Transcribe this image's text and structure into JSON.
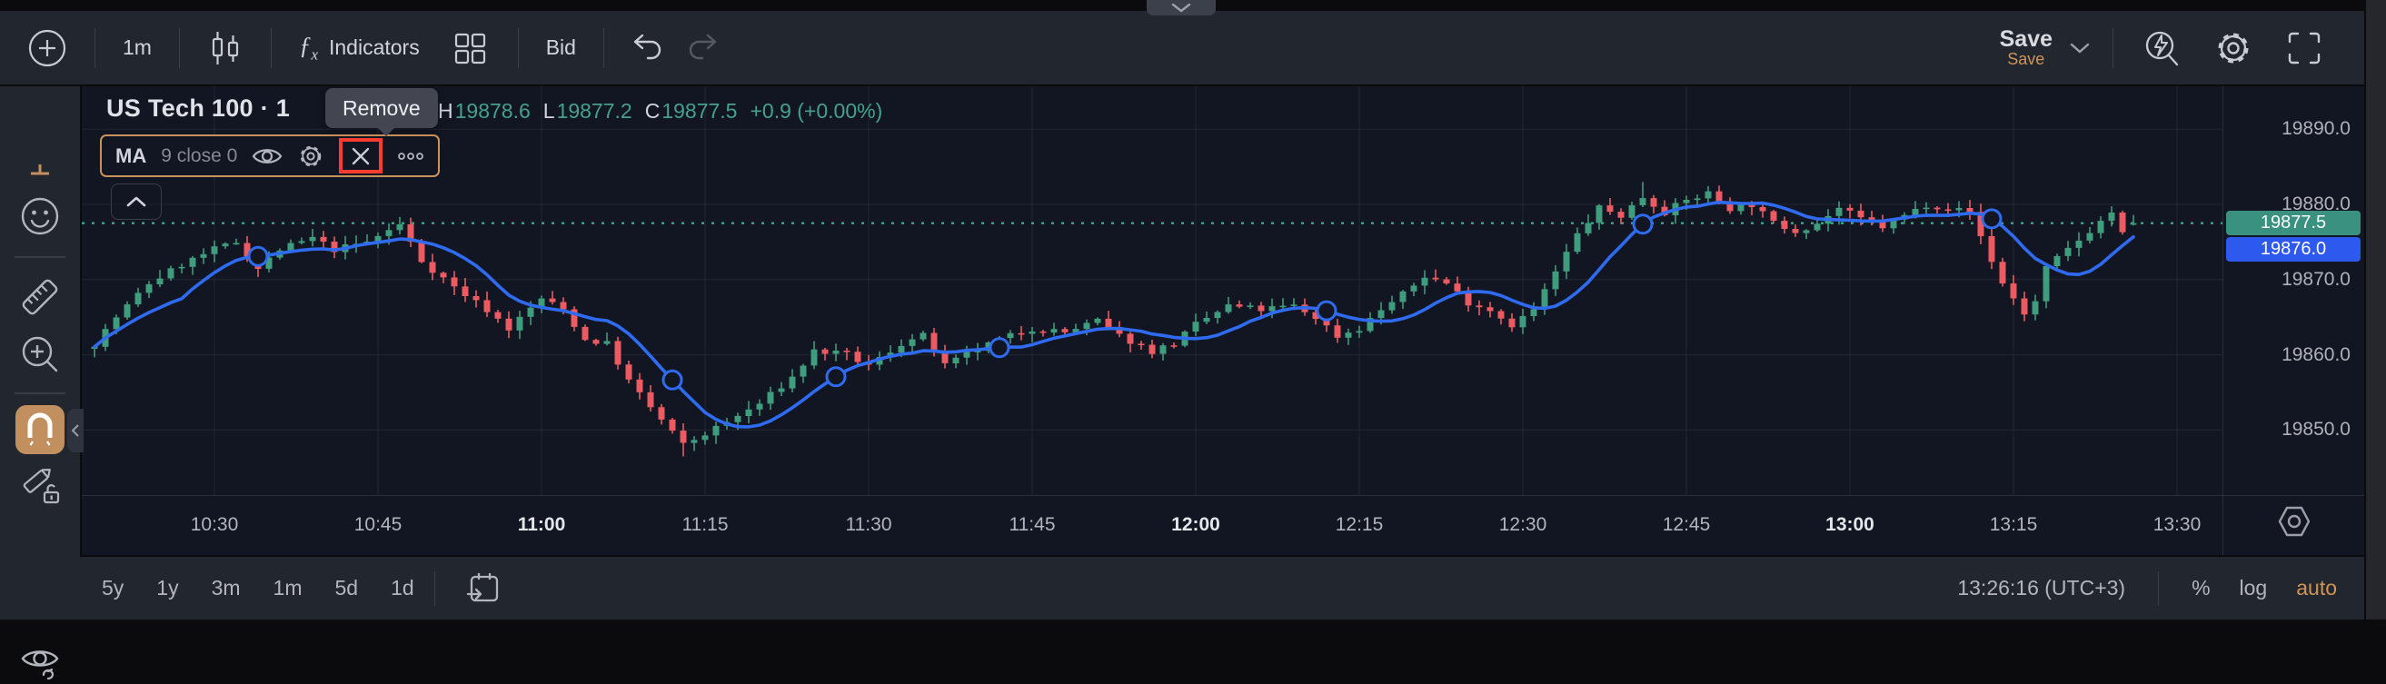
{
  "header": {
    "interval": "1m",
    "indicators_label": "Indicators",
    "fx_glyph": "ƒ",
    "fx_sub": "x",
    "bid_label": "Bid",
    "save_label": "Save",
    "save_sub_label": "Save"
  },
  "legend": {
    "title": "US Tech 100 · 1",
    "tooltip": "Remove",
    "ohlc": [
      {
        "label": "H",
        "value": "19878.6"
      },
      {
        "label": "L",
        "value": "19877.2"
      },
      {
        "label": "C",
        "value": "19877.5"
      }
    ],
    "change": "+0.9 (+0.00%)",
    "ma_label": "MA",
    "ma_params": "9 close 0"
  },
  "price_axis": {
    "ticks": [
      "19890.0",
      "19880.0",
      "19870.0",
      "19860.0",
      "19850.0"
    ],
    "tick_values": [
      19890,
      19880,
      19870,
      19860,
      19850
    ],
    "last_price_badge": {
      "label": "19877.5",
      "color": "#3a9180"
    },
    "secondary_badge": {
      "label": "19876.0",
      "color": "#2e59ef"
    }
  },
  "time_axis": {
    "ticks": [
      {
        "label": "10:30",
        "bold": false
      },
      {
        "label": "10:45",
        "bold": false
      },
      {
        "label": "11:00",
        "bold": true
      },
      {
        "label": "11:15",
        "bold": false
      },
      {
        "label": "11:30",
        "bold": false
      },
      {
        "label": "11:45",
        "bold": false
      },
      {
        "label": "12:00",
        "bold": true
      },
      {
        "label": "12:15",
        "bold": false
      },
      {
        "label": "12:30",
        "bold": false
      },
      {
        "label": "12:45",
        "bold": false
      },
      {
        "label": "13:00",
        "bold": true
      },
      {
        "label": "13:15",
        "bold": false
      },
      {
        "label": "13:30",
        "bold": false
      }
    ]
  },
  "bottom_bar": {
    "ranges": [
      "5y",
      "1y",
      "3m",
      "1m",
      "5d",
      "1d"
    ],
    "clock": "13:26:16 (UTC+3)",
    "percent_label": "%",
    "log_label": "log",
    "auto_label": "auto"
  },
  "colors": {
    "up": "#3f9c7d",
    "down": "#ec5a62",
    "ma_line": "#2f6bf0",
    "last_price_line": "#3ea78f",
    "accent_orange": "#c9935b",
    "highlight_red": "#f93b30",
    "grid": "rgba(255,255,255,0.07)",
    "chart_bg": "#121622"
  },
  "icons": {
    "header_left": [
      "plus-icon",
      "candles-style-icon",
      "fx-icon",
      "grid-layout-icon",
      "undo-icon",
      "redo-icon"
    ],
    "header_right": [
      "chevron-down-icon",
      "flash-search-icon",
      "gear-icon",
      "fullscreen-icon"
    ],
    "sidebar": [
      "active-tool-partial-icon",
      "emoji-icon",
      "ruler-icon",
      "zoom-in-icon",
      "magnet-icon",
      "pencil-lock-icon",
      "lock-icon",
      "eye-icon",
      "collapse-chevron-icon"
    ],
    "legend": [
      "eye-icon",
      "gear-icon",
      "close-icon",
      "more-dots-icon"
    ],
    "axis": [
      "hexagon-settings-icon"
    ],
    "bottom": [
      "go-to-date-icon"
    ],
    "top": [
      "chevron-down-icon"
    ]
  },
  "chart_data": {
    "type": "candlestick",
    "symbol": "US Tech 100",
    "interval_minutes": 1,
    "title": "US Tech 100 · 1",
    "last_price": 19877.5,
    "secondary_price": 19876.0,
    "start_time": "10:19",
    "end_time": "13:26",
    "y_axis": {
      "tick_values": [
        19890,
        19880,
        19870,
        19860,
        19850
      ],
      "visible_range": [
        19841.5,
        19895.8
      ]
    },
    "x_axis": {
      "tick_labels": [
        "10:30",
        "10:45",
        "11:00",
        "11:15",
        "11:30",
        "11:45",
        "12:00",
        "12:15",
        "12:30",
        "12:45",
        "13:00",
        "13:15",
        "13:30"
      ]
    },
    "grid": true,
    "ma": {
      "label": "MA",
      "params": "9 close 0",
      "period": 9,
      "source": "close",
      "offset": 0
    },
    "ma_anchor_times": [
      "10:34",
      "11:12",
      "11:27",
      "11:42",
      "12:12",
      "12:41",
      "13:13"
    ],
    "extremes": {
      "session_low": {
        "time": "11:13",
        "price": 19846.5
      },
      "local_high": {
        "time": "12:41",
        "price": 19883.0
      },
      "last_candle": {
        "open": 19877.3,
        "high": 19878.6,
        "low": 19877.2,
        "close": 19877.5
      }
    },
    "price_path": [
      [
        "10:19",
        19861.5
      ],
      [
        "10:21",
        19865
      ],
      [
        "10:24",
        19869.5
      ],
      [
        "10:27",
        19872
      ],
      [
        "10:30",
        19874
      ],
      [
        "10:32",
        19875
      ],
      [
        "10:34",
        19871.5
      ],
      [
        "10:36",
        19874
      ],
      [
        "10:39",
        19875.5
      ],
      [
        "10:41",
        19874
      ],
      [
        "10:44",
        19875
      ],
      [
        "10:47",
        19877.3
      ],
      [
        "10:49",
        19872.5
      ],
      [
        "10:52",
        19869
      ],
      [
        "10:55",
        19866
      ],
      [
        "10:57",
        19863.5
      ],
      [
        "11:00",
        19867.5
      ],
      [
        "11:02",
        19866
      ],
      [
        "11:04",
        19862
      ],
      [
        "11:06",
        19861.5
      ],
      [
        "11:08",
        19856.5
      ],
      [
        "11:10",
        19853
      ],
      [
        "11:13",
        19848
      ],
      [
        "11:15",
        19849.5
      ],
      [
        "11:17",
        19851
      ],
      [
        "11:20",
        19853.5
      ],
      [
        "11:23",
        19857
      ],
      [
        "11:25",
        19860.5
      ],
      [
        "11:28",
        19860
      ],
      [
        "11:30",
        19858.5
      ],
      [
        "11:33",
        19861.5
      ],
      [
        "11:35",
        19862.5
      ],
      [
        "11:37",
        19858.5
      ],
      [
        "11:39",
        19860
      ],
      [
        "11:42",
        19862
      ],
      [
        "11:45",
        19863.5
      ],
      [
        "11:48",
        19863
      ],
      [
        "11:51",
        19864.5
      ],
      [
        "11:53",
        19862.5
      ],
      [
        "11:56",
        19860.5
      ],
      [
        "11:58",
        19861.5
      ],
      [
        "12:00",
        19864
      ],
      [
        "12:03",
        19866.5
      ],
      [
        "12:06",
        19866
      ],
      [
        "12:09",
        19866.5
      ],
      [
        "12:11",
        19865
      ],
      [
        "12:13",
        19862.5
      ],
      [
        "12:15",
        19863.5
      ],
      [
        "12:17",
        19866
      ],
      [
        "12:19",
        19868
      ],
      [
        "12:21",
        19870.5
      ],
      [
        "12:23",
        19869.5
      ],
      [
        "12:25",
        19867
      ],
      [
        "12:27",
        19866
      ],
      [
        "12:29",
        19864
      ],
      [
        "12:31",
        19866
      ],
      [
        "12:33",
        19871
      ],
      [
        "12:35",
        19876
      ],
      [
        "12:37",
        19879.5
      ],
      [
        "12:39",
        19878.5
      ],
      [
        "12:41",
        19881
      ],
      [
        "12:43",
        19879
      ],
      [
        "12:45",
        19880.5
      ],
      [
        "12:47",
        19881.5
      ],
      [
        "12:49",
        19879.5
      ],
      [
        "12:51",
        19880
      ],
      [
        "12:53",
        19877.5
      ],
      [
        "12:55",
        19876.5
      ],
      [
        "12:57",
        19877.5
      ],
      [
        "12:59",
        19879.5
      ],
      [
        "13:01",
        19878
      ],
      [
        "13:03",
        19877
      ],
      [
        "13:05",
        19878.5
      ],
      [
        "13:07",
        19880
      ],
      [
        "13:09",
        19879.5
      ],
      [
        "13:11",
        19879
      ],
      [
        "13:13",
        19872.5
      ],
      [
        "13:14",
        19869.5
      ],
      [
        "13:16",
        19865.5
      ],
      [
        "13:17",
        19867
      ],
      [
        "13:18",
        19871.5
      ],
      [
        "13:20",
        19874
      ],
      [
        "13:22",
        19876.5
      ],
      [
        "13:24",
        19879
      ],
      [
        "13:25",
        19876
      ],
      [
        "13:26",
        19877.5
      ]
    ]
  }
}
